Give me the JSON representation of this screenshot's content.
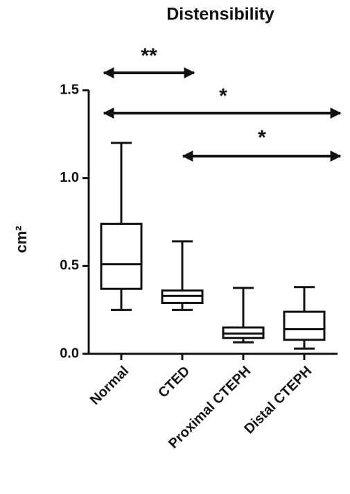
{
  "chart_data": {
    "type": "box",
    "title": "Distensibility",
    "y_label": "cm²",
    "categories": [
      "Normal",
      "CTED",
      "Proximal CTEPH",
      "Distal CTEPH"
    ],
    "min": [
      0.25,
      0.25,
      0.065,
      0.03
    ],
    "q1": [
      0.37,
      0.29,
      0.09,
      0.08
    ],
    "median": [
      0.51,
      0.33,
      0.115,
      0.14
    ],
    "q3": [
      0.74,
      0.36,
      0.15,
      0.24
    ],
    "max": [
      1.2,
      0.64,
      0.375,
      0.38
    ],
    "color": "#111111",
    "ylim": [
      0,
      1.5
    ],
    "yticks": [
      {
        "value": 0,
        "label": "0.0"
      },
      0.5,
      {
        "value": 1,
        "label": "1.0"
      },
      1.5
    ],
    "annotations": [
      "**",
      "*",
      "*"
    ]
  }
}
